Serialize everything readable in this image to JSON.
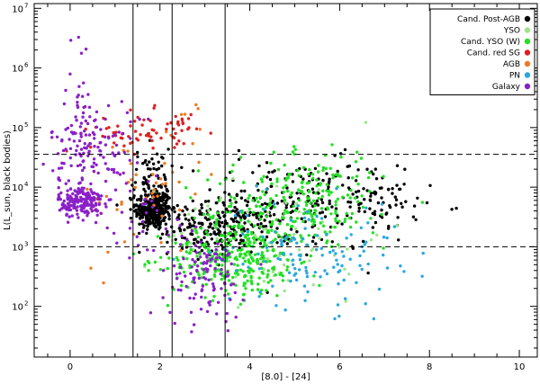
{
  "chart_data": {
    "type": "scatter",
    "title": "",
    "xlabel": "[8.0] - [24]",
    "ylabel": "L(L_sun, black bodies)",
    "xlim": [
      -0.8,
      10.4
    ],
    "ylim_log10": [
      1.15,
      7.08
    ],
    "yscale": "log",
    "grid": false,
    "legend_position": "top-right",
    "x_ticks": [
      "0",
      "2",
      "4",
      "6",
      "8",
      "10"
    ],
    "x_tick_values": [
      0,
      2,
      4,
      6,
      8,
      10
    ],
    "y_ticks_exponent": [
      "2",
      "3",
      "4",
      "5",
      "6",
      "7"
    ],
    "y_tick_base": "10",
    "y_tick_values_log10": [
      2,
      3,
      4,
      5,
      6,
      7
    ],
    "vertical_lines_x": [
      1.4,
      2.27,
      3.45
    ],
    "horizontal_dashed_lines_log10": [
      3.0,
      4.55
    ],
    "series": [
      {
        "name": "Cand. Post-AGB",
        "color": "#000000",
        "clusters": [
          {
            "cx": 1.85,
            "cy": 3.62,
            "sx": 0.2,
            "sy": 0.17,
            "n": 330
          },
          {
            "cx": 1.8,
            "cy": 4.15,
            "sx": 0.2,
            "sy": 0.25,
            "n": 60
          },
          {
            "cx": 3.3,
            "cy": 3.3,
            "sx": 0.55,
            "sy": 0.22,
            "n": 200
          },
          {
            "cx": 5.0,
            "cy": 3.7,
            "sx": 1.2,
            "sy": 0.38,
            "n": 230
          },
          {
            "cx": 6.8,
            "cy": 3.85,
            "sx": 0.55,
            "sy": 0.28,
            "n": 50
          }
        ]
      },
      {
        "name": "YSO",
        "color": "#9be68a",
        "clusters": [
          {
            "cx": 4.6,
            "cy": 3.2,
            "sx": 1.2,
            "sy": 0.55,
            "n": 80
          }
        ]
      },
      {
        "name": "Cand. YSO (W)",
        "color": "#22e022",
        "clusters": [
          {
            "cx": 3.6,
            "cy": 2.8,
            "sx": 0.7,
            "sy": 0.33,
            "n": 260
          },
          {
            "cx": 4.8,
            "cy": 3.55,
            "sx": 0.95,
            "sy": 0.45,
            "n": 220
          },
          {
            "cx": 5.6,
            "cy": 4.1,
            "sx": 0.55,
            "sy": 0.3,
            "n": 60
          }
        ]
      },
      {
        "name": "Cand. red SG",
        "color": "#e02020",
        "clusters": [
          {
            "cx": 1.55,
            "cy": 4.92,
            "sx": 0.55,
            "sy": 0.17,
            "n": 60
          },
          {
            "cx": 2.5,
            "cy": 5.0,
            "sx": 0.2,
            "sy": 0.12,
            "n": 15
          }
        ]
      },
      {
        "name": "AGB",
        "color": "#f07a20",
        "clusters": [
          {
            "cx": 1.5,
            "cy": 3.85,
            "sx": 0.65,
            "sy": 0.55,
            "n": 40
          },
          {
            "cx": 2.5,
            "cy": 4.7,
            "sx": 0.35,
            "sy": 0.4,
            "n": 12
          }
        ]
      },
      {
        "name": "PN",
        "color": "#2aa7e0",
        "clusters": [
          {
            "cx": 5.3,
            "cy": 2.9,
            "sx": 1.0,
            "sy": 0.45,
            "n": 130
          }
        ]
      },
      {
        "name": "Galaxy",
        "color": "#8a20c8",
        "clusters": [
          {
            "cx": 0.25,
            "cy": 3.75,
            "sx": 0.25,
            "sy": 0.13,
            "n": 180
          },
          {
            "cx": 0.45,
            "cy": 4.7,
            "sx": 0.45,
            "sy": 0.38,
            "n": 140
          },
          {
            "cx": 3.0,
            "cy": 2.5,
            "sx": 0.45,
            "sy": 0.35,
            "n": 110
          },
          {
            "cx": 0.25,
            "cy": 5.8,
            "sx": 0.15,
            "sy": 0.45,
            "n": 15
          },
          {
            "cx": 1.6,
            "cy": 3.5,
            "sx": 0.5,
            "sy": 0.45,
            "n": 30
          }
        ]
      }
    ]
  }
}
